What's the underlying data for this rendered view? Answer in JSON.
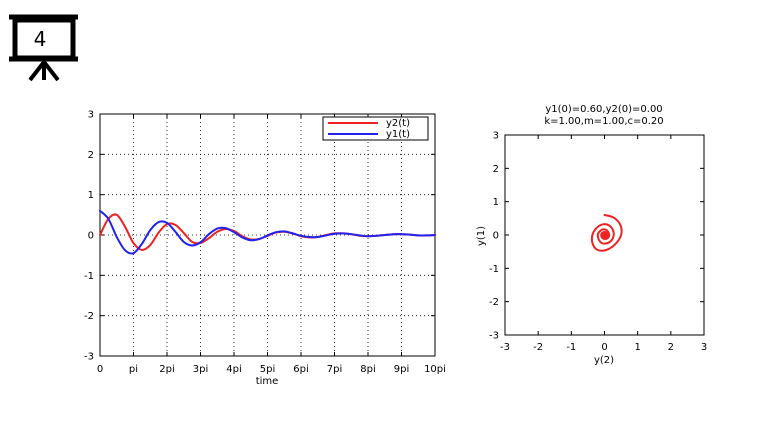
{
  "slide": {
    "number": "4",
    "icon": "projector-screen-icon"
  },
  "chart_data": [
    {
      "type": "line",
      "title": "",
      "xlabel": "time",
      "ylabel": "",
      "xlim": [
        0,
        10
      ],
      "ylim": [
        -3,
        3
      ],
      "x_unit": "pi",
      "x_ticks": [
        0,
        1,
        2,
        3,
        4,
        5,
        6,
        7,
        8,
        9,
        10
      ],
      "x_tick_labels": [
        "0",
        "pi",
        "2pi",
        "3pi",
        "4pi",
        "5pi",
        "6pi",
        "7pi",
        "8pi",
        "9pi",
        "10pi"
      ],
      "y_ticks": [
        -3,
        -2,
        -1,
        0,
        1,
        2,
        3
      ],
      "y_tick_labels": [
        "-3",
        "-2",
        "-1",
        "0",
        "1",
        "2",
        "3"
      ],
      "grid": true,
      "legend": "top-right",
      "series": [
        {
          "name": "y2(t)",
          "color": "#ee2222",
          "x": [
            0,
            0.25,
            0.5,
            0.75,
            1,
            1.25,
            1.5,
            1.75,
            2,
            2.25,
            2.5,
            2.75,
            3,
            3.25,
            3.5,
            3.75,
            4,
            4.25,
            4.5,
            4.75,
            5,
            5.25,
            5.5,
            5.75,
            6,
            6.25,
            6.5,
            6.75,
            7,
            7.25,
            7.5,
            7.75,
            8,
            8.25,
            8.5,
            8.75,
            9,
            9.25,
            9.5,
            9.75,
            10
          ],
          "y": [
            0,
            0.4,
            0.5,
            0.2,
            -0.2,
            -0.37,
            -0.25,
            0.06,
            0.27,
            0.25,
            0.05,
            -0.17,
            -0.2,
            -0.08,
            0.08,
            0.15,
            0.1,
            -0.03,
            -0.11,
            -0.1,
            -0.02,
            0.06,
            0.08,
            0.04,
            -0.03,
            -0.06,
            -0.05,
            0,
            0.04,
            0.04,
            0.02,
            -0.02,
            -0.03,
            -0.02,
            0,
            0.02,
            0.02,
            0.01,
            -0.01,
            -0.01,
            0
          ]
        },
        {
          "name": "y1(t)",
          "color": "#2222ee",
          "x": [
            0,
            0.25,
            0.5,
            0.75,
            1,
            1.25,
            1.5,
            1.75,
            2,
            2.25,
            2.5,
            2.75,
            3,
            3.25,
            3.5,
            3.75,
            4,
            4.25,
            4.5,
            4.75,
            5,
            5.25,
            5.5,
            5.75,
            6,
            6.25,
            6.5,
            6.75,
            7,
            7.25,
            7.5,
            7.75,
            8,
            8.25,
            8.5,
            8.75,
            9,
            9.25,
            9.5,
            9.75,
            10
          ],
          "y": [
            0.6,
            0.4,
            -0.05,
            -0.38,
            -0.45,
            -0.22,
            0.12,
            0.32,
            0.3,
            0.08,
            -0.17,
            -0.26,
            -0.18,
            0.02,
            0.16,
            0.17,
            0.07,
            -0.06,
            -0.13,
            -0.1,
            -0.01,
            0.07,
            0.09,
            0.04,
            -0.02,
            -0.05,
            -0.05,
            -0.01,
            0.03,
            0.04,
            0.02,
            -0.01,
            -0.03,
            -0.02,
            0,
            0.02,
            0.02,
            0.01,
            -0.01,
            -0.01,
            0
          ]
        }
      ]
    },
    {
      "type": "line",
      "title": "y1(0)=0.60,y2(0)=0.00",
      "subtitle": "k=1.00,m=1.00,c=0.20",
      "xlabel": "y(2)",
      "ylabel": "y(1)",
      "xlim": [
        -3,
        3
      ],
      "ylim": [
        -3,
        3
      ],
      "x_ticks": [
        -3,
        -2,
        -1,
        0,
        1,
        2,
        3
      ],
      "x_tick_labels": [
        "-3",
        "-2",
        "-1",
        "0",
        "1",
        "2",
        "3"
      ],
      "y_ticks": [
        -3,
        -2,
        -1,
        0,
        1,
        2,
        3
      ],
      "y_tick_labels": [
        "-3",
        "-2",
        "-1",
        "0",
        "1",
        "2",
        "3"
      ],
      "grid": false,
      "series": [
        {
          "color": "#ee2222",
          "x": [
            0,
            0.28,
            0.48,
            0.5,
            0.32,
            0.05,
            -0.2,
            -0.35,
            -0.37,
            -0.25,
            -0.05,
            0.15,
            0.27,
            0.25,
            0.12,
            -0.06,
            -0.17,
            -0.2,
            -0.12,
            0,
            0.1,
            0.14,
            0.1,
            0.01,
            -0.07,
            -0.1,
            -0.07,
            0,
            0.05,
            0.06,
            0.04,
            0,
            -0.03,
            -0.03,
            -0.01,
            0.01,
            0.02,
            0.01,
            0
          ],
          "y": [
            0.6,
            0.52,
            0.3,
            0,
            -0.28,
            -0.45,
            -0.45,
            -0.28,
            -0.02,
            0.2,
            0.32,
            0.28,
            0.1,
            -0.1,
            -0.23,
            -0.25,
            -0.14,
            0.02,
            0.13,
            0.17,
            0.11,
            0,
            -0.09,
            -0.12,
            -0.08,
            0,
            0.06,
            0.08,
            0.05,
            0,
            -0.04,
            -0.05,
            -0.03,
            0,
            0.02,
            0.03,
            0.01,
            -0.01,
            0
          ]
        }
      ]
    }
  ]
}
